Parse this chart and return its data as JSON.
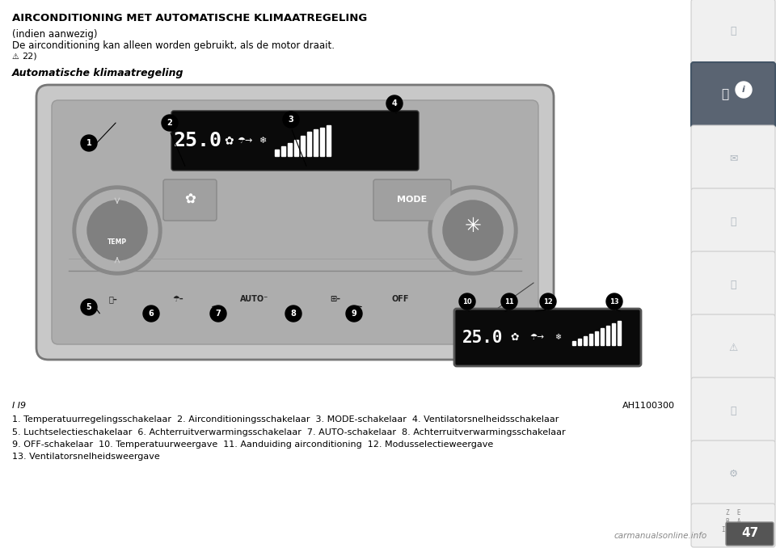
{
  "title": "AIRCONDITIONING MET AUTOMATISCHE KLIMAATREGELING",
  "subtitle1": "(indien aanwezig)",
  "subtitle2": "De airconditioning kan alleen worden gebruikt, als de motor draait.",
  "warning_ref": "22)",
  "section_title": "Automatische klimaatregeling",
  "caption_left": "I I9",
  "caption_right": "AH1100300",
  "legend_lines": [
    "1. Temperatuurregelingsschakelaar  2. Airconditioningsschakelaar  3. MODE-schakelaar  4. Ventilatorsnelheidsschakelaar",
    "5. Luchtselectieschakelaar  6. Achterruitverwarmingsschakelaar  7. AUTO-schakelaar  8. Achterruitverwarmingsschakelaar",
    "9. OFF-schakelaar  10. Temperatuurweergave  11. Aanduiding airconditioning  12. Modusselectieweergave",
    "13. Ventilatorsnelheidsweergave"
  ],
  "bg_color": "#ffffff",
  "text_color": "#000000",
  "panel_face": "#b0b0b0",
  "panel_edge": "#888888",
  "display_bg": "#0a0a0a",
  "display_text": "#ffffff",
  "button_face": "#999999",
  "sidebar_selected_bg": "#5a6472",
  "sidebar_unselected_bg": "#f0f0f0",
  "sidebar_edge": "#cccccc",
  "page_number": "47"
}
